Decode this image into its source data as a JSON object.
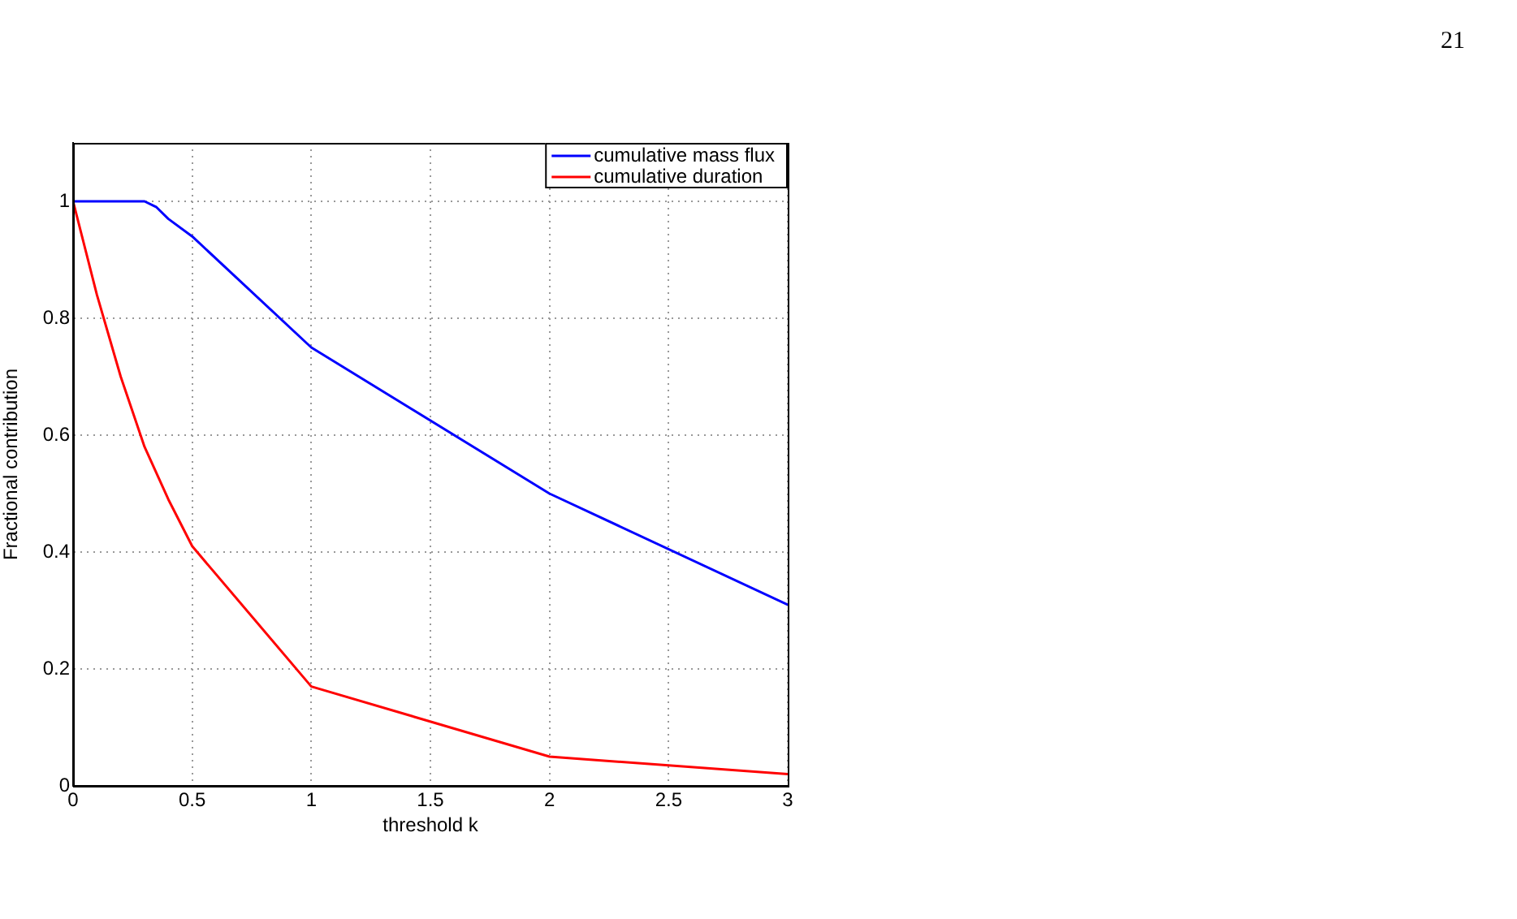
{
  "chart_data": {
    "type": "line",
    "xlabel": "threshold k",
    "ylabel": "Fractional contribution",
    "annotations": [
      "21"
    ],
    "xlim": [
      0,
      3
    ],
    "xticks": [
      0,
      0.5,
      1,
      1.5,
      2,
      2.5,
      3
    ],
    "ylim": [
      0,
      1.1
    ],
    "yticks": [
      0,
      0.2,
      0.4,
      0.6,
      0.8,
      1
    ],
    "grid": true,
    "legend": "top right",
    "marker": "none",
    "line_style": "solid",
    "series": [
      {
        "name": "cumulative mass flux",
        "color": "#0000ff",
        "x": [
          0,
          0.3,
          0.35,
          0.4,
          0.5,
          1,
          2,
          3
        ],
        "values": [
          1,
          1,
          0.99,
          0.97,
          0.94,
          0.75,
          0.5,
          0.31
        ]
      },
      {
        "name": "cumulative duration",
        "color": "#ff0000",
        "x": [
          0,
          0.1,
          0.2,
          0.3,
          0.4,
          0.5,
          1,
          2,
          3
        ],
        "values": [
          1,
          0.84,
          0.7,
          0.58,
          0.49,
          0.41,
          0.17,
          0.05,
          0.02
        ]
      }
    ]
  }
}
